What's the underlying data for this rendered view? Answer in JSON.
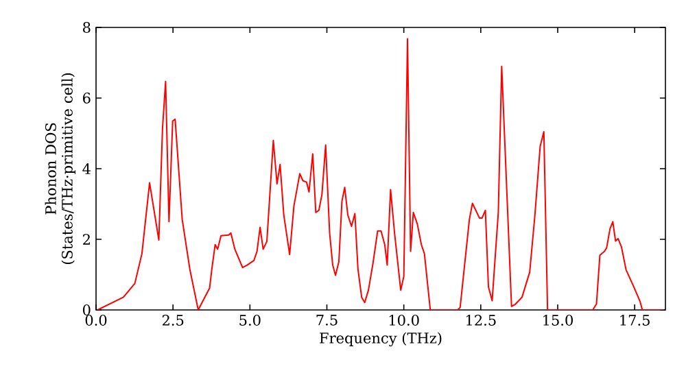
{
  "chart_data": {
    "type": "line",
    "xlabel": "Frequency (THz)",
    "ylabel": "Phonon DOS (States/THz·primitive cell)",
    "xlim": [
      0,
      18.5
    ],
    "ylim": [
      0,
      8
    ],
    "xticks": [
      {
        "value": 0,
        "label": "0.0"
      },
      {
        "value": 2.5,
        "label": "2.5"
      },
      {
        "value": 5,
        "label": "5.0"
      },
      {
        "value": 7.5,
        "label": "7.5"
      },
      {
        "value": 10,
        "label": "10.0"
      },
      {
        "value": 12.5,
        "label": "12.5"
      },
      {
        "value": 15,
        "label": "15.0"
      },
      {
        "value": 17.5,
        "label": "17.5"
      }
    ],
    "yticks": [
      0,
      2,
      4,
      6,
      8
    ],
    "grid": false,
    "marker": "none",
    "line_style": "solid",
    "series": [
      {
        "color": "#ff0000",
        "x": [
          0.05,
          0.89,
          1.26,
          1.49,
          1.74,
          2.04,
          2.16,
          2.26,
          2.37,
          2.49,
          2.57,
          2.8,
          3.05,
          3.32,
          3.69,
          3.76,
          3.87,
          3.95,
          4.06,
          4.31,
          4.38,
          4.51,
          4.76,
          4.91,
          5.13,
          5.23,
          5.33,
          5.43,
          5.55,
          5.76,
          5.88,
          5.98,
          6.1,
          6.29,
          6.43,
          6.62,
          6.72,
          6.84,
          6.92,
          7.04,
          7.14,
          7.24,
          7.34,
          7.46,
          7.59,
          7.69,
          7.78,
          7.89,
          7.99,
          8.08,
          8.18,
          8.3,
          8.41,
          8.51,
          8.63,
          8.73,
          8.85,
          9.0,
          9.15,
          9.26,
          9.38,
          9.46,
          9.57,
          9.7,
          9.9,
          10.0,
          10.12,
          10.22,
          10.31,
          10.44,
          10.57,
          10.67,
          10.86,
          11.75,
          11.83,
          12.13,
          12.23,
          12.46,
          12.54,
          12.65,
          12.75,
          12.87,
          13.07,
          13.18,
          13.5,
          13.62,
          13.84,
          14.09,
          14.26,
          14.43,
          14.55,
          14.67,
          16.14,
          16.26,
          16.37,
          16.52,
          16.59,
          16.7,
          16.79,
          16.88,
          16.96,
          17.07,
          17.22,
          17.49,
          17.68,
          17.75,
          18.45
        ],
        "values": [
          0,
          0.36,
          0.75,
          1.59,
          3.6,
          1.98,
          5.15,
          6.47,
          2.5,
          5.35,
          5.4,
          2.56,
          1.14,
          0,
          0.62,
          1.14,
          1.85,
          1.72,
          2.1,
          2.12,
          2.18,
          1.72,
          1.2,
          1.27,
          1.4,
          1.66,
          2.34,
          1.72,
          1.94,
          4.8,
          3.57,
          4.12,
          2.69,
          1.57,
          2.95,
          3.86,
          3.66,
          3.62,
          3.34,
          4.42,
          2.76,
          2.82,
          3.27,
          4.67,
          2.17,
          1.27,
          0.98,
          1.37,
          3.08,
          3.47,
          2.69,
          2.37,
          2.73,
          1.16,
          0.36,
          0.21,
          0.56,
          1.33,
          2.24,
          2.24,
          1.85,
          1.27,
          3.41,
          2.17,
          0.56,
          0.95,
          7.68,
          1.66,
          2.76,
          2.43,
          1.85,
          1.59,
          0,
          0,
          0.07,
          2.56,
          3.02,
          2.6,
          2.6,
          2.82,
          0.65,
          0.26,
          2.76,
          6.9,
          0.1,
          0.16,
          0.36,
          1.07,
          2.69,
          4.63,
          5.05,
          0,
          0,
          0.17,
          1.55,
          1.66,
          1.76,
          2.3,
          2.5,
          1.95,
          2.02,
          1.79,
          1.14,
          0.62,
          0.23,
          0,
          0
        ]
      }
    ]
  }
}
